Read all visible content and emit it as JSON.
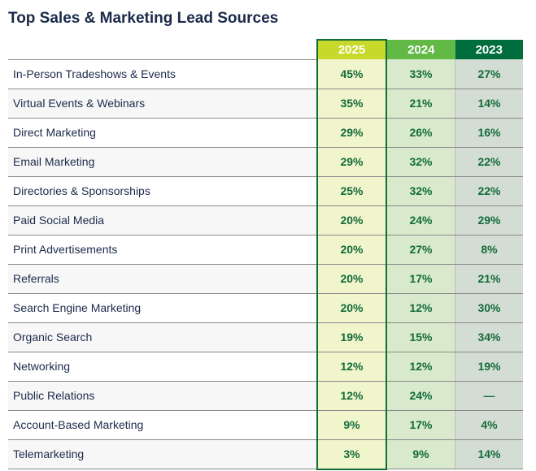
{
  "chart_data": {
    "type": "table",
    "title": "Top Sales & Marketing Lead Sources",
    "columns": [
      "2025",
      "2024",
      "2023"
    ],
    "rows": [
      {
        "label": "In-Person Tradeshows & Events",
        "values": [
          "45%",
          "33%",
          "27%"
        ]
      },
      {
        "label": "Virtual Events & Webinars",
        "values": [
          "35%",
          "21%",
          "14%"
        ]
      },
      {
        "label": "Direct Marketing",
        "values": [
          "29%",
          "26%",
          "16%"
        ]
      },
      {
        "label": "Email Marketing",
        "values": [
          "29%",
          "32%",
          "22%"
        ]
      },
      {
        "label": "Directories & Sponsorships",
        "values": [
          "25%",
          "32%",
          "22%"
        ]
      },
      {
        "label": "Paid Social Media",
        "values": [
          "20%",
          "24%",
          "29%"
        ]
      },
      {
        "label": "Print Advertisements",
        "values": [
          "20%",
          "27%",
          "8%"
        ]
      },
      {
        "label": "Referrals",
        "values": [
          "20%",
          "17%",
          "21%"
        ]
      },
      {
        "label": "Search Engine Marketing",
        "values": [
          "20%",
          "12%",
          "30%"
        ]
      },
      {
        "label": "Organic Search",
        "values": [
          "19%",
          "15%",
          "34%"
        ]
      },
      {
        "label": "Networking",
        "values": [
          "12%",
          "12%",
          "19%"
        ]
      },
      {
        "label": "Public Relations",
        "values": [
          "12%",
          "24%",
          "—"
        ]
      },
      {
        "label": "Account-Based Marketing",
        "values": [
          "9%",
          "17%",
          "4%"
        ]
      },
      {
        "label": "Telemarketing",
        "values": [
          "3%",
          "9%",
          "14%"
        ]
      }
    ],
    "colors": {
      "2025": "#c8d92b",
      "2024": "#62b946",
      "2023": "#006e3c",
      "text": "#146b3a"
    }
  }
}
